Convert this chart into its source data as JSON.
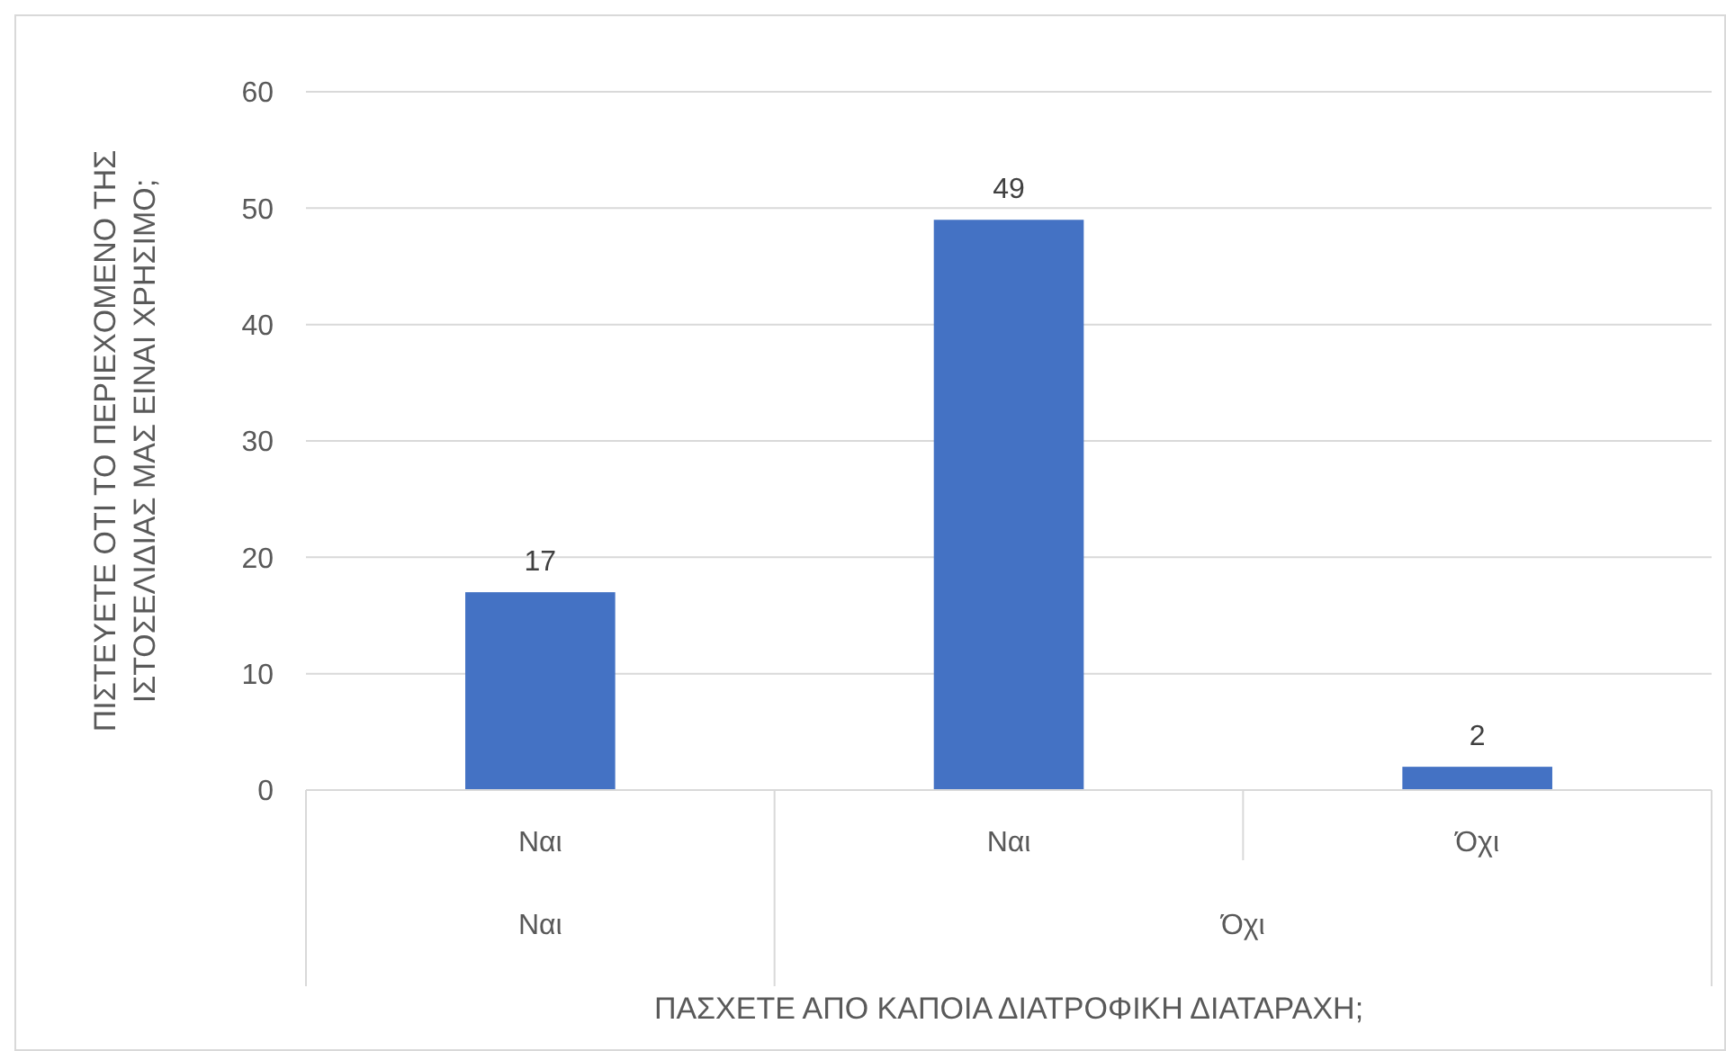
{
  "chart_data": {
    "type": "bar",
    "categories": [
      "Ναι",
      "Ναι",
      "Όχι"
    ],
    "values": [
      17,
      49,
      2
    ],
    "color": "#4472c4",
    "ylim": [
      0,
      60
    ],
    "yticks": [
      0,
      10,
      20,
      30,
      40,
      50,
      60
    ],
    "grid": "y",
    "data_labels": true,
    "xlabel": "ΠΑΣΧΕΤΕ ΑΠΟ ΚΑΠΟΙΑ ΔΙΑΤΡΟΦΙΚΗ ΔΙΑΤΑΡΑΧΗ;",
    "ylabel": "ΠΙΣΤΕΥΕΤΕ ΟΤΙ ΤΟ ΠΕΡΙΕΧΟΜΕΝΟ ΤΗΣ ΙΣΤΟΣΕΛΙΔΙΑΣ ΜΑΣ ΕΙΝΑΙ ΧΡΗΣΙΜΟ;",
    "annotations": [
      "Ναι",
      "Όχι"
    ]
  }
}
